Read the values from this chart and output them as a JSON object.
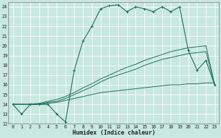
{
  "xlabel": "Humidex (Indice chaleur)",
  "xlim": [
    -0.5,
    23.5
  ],
  "ylim": [
    12,
    24.5
  ],
  "yticks": [
    12,
    13,
    14,
    15,
    16,
    17,
    18,
    19,
    20,
    21,
    22,
    23,
    24
  ],
  "xticks": [
    0,
    1,
    2,
    3,
    4,
    5,
    6,
    7,
    8,
    9,
    10,
    11,
    12,
    13,
    14,
    15,
    16,
    17,
    18,
    19,
    20,
    21,
    22,
    23
  ],
  "bg_color": "#c8e8e0",
  "grid_color": "#ffffff",
  "line_color": "#1a6b5a",
  "line1_y": [
    14,
    13,
    14,
    14,
    14,
    13,
    12.2,
    17.5,
    20.5,
    22,
    23.8,
    24.1,
    24.2,
    23.5,
    24.0,
    23.8,
    23.5,
    24.0,
    23.5,
    24.0,
    19.5,
    17.5,
    18.5,
    16.0
  ],
  "line2_y": [
    14,
    14,
    14,
    14,
    14.1,
    14.2,
    14.4,
    14.6,
    14.8,
    15.0,
    15.2,
    15.3,
    15.4,
    15.5,
    15.6,
    15.7,
    15.8,
    15.9,
    16.0,
    16.0,
    16.1,
    16.1,
    16.2,
    16.2
  ],
  "line3_y": [
    14,
    14,
    14,
    14,
    14.2,
    14.3,
    14.6,
    15.0,
    15.4,
    15.8,
    16.3,
    16.7,
    17.0,
    17.3,
    17.6,
    18.0,
    18.3,
    18.6,
    18.8,
    19.0,
    19.2,
    19.3,
    19.4,
    16.0
  ],
  "line4_y": [
    14,
    14,
    14,
    14.1,
    14.3,
    14.5,
    14.8,
    15.2,
    15.7,
    16.1,
    16.6,
    17.0,
    17.4,
    17.8,
    18.1,
    18.5,
    18.8,
    19.1,
    19.4,
    19.6,
    19.8,
    19.9,
    20.0,
    16.0
  ]
}
